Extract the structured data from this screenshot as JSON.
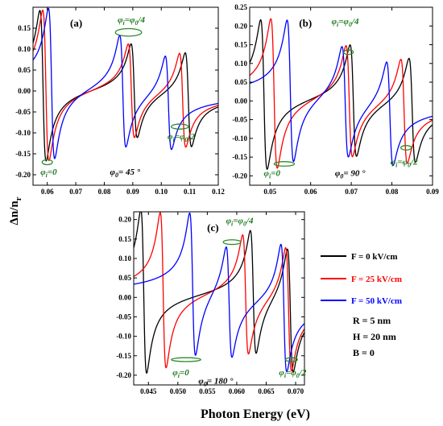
{
  "figure": {
    "ylabel": "Δn/n",
    "ylabel_sub": "r",
    "xlabel": "Photon Energy (eV)",
    "params": [
      "R = 5 nm",
      "H = 20 nm",
      "B = 0"
    ]
  },
  "legend": [
    {
      "label": "F = 0 kV/cm",
      "color": "#000000"
    },
    {
      "label": "F = 25 kV/cm",
      "color": "#ff0000"
    },
    {
      "label": "F = 50 kV/cm",
      "color": "#0000ff"
    }
  ],
  "chart_data": [
    {
      "type": "line",
      "panel": "(a)",
      "phi0_label": "= 45 °",
      "xlim": [
        0.055,
        0.12
      ],
      "ylim": [
        -0.225,
        0.2
      ],
      "xticks": [
        0.06,
        0.07,
        0.08,
        0.09,
        0.1,
        0.11,
        0.12
      ],
      "xtick_labels": [
        "0.06",
        "0.07",
        "0.08",
        "0.09",
        "0.10",
        "0.11",
        "0.12"
      ],
      "yticks": [
        -0.2,
        -0.15,
        -0.1,
        -0.05,
        0.0,
        0.05,
        0.1,
        0.15
      ],
      "ytick_labels": [
        "-0.20",
        "-0.15",
        "-0.10",
        "-0.05",
        "0.00",
        "0.05",
        "0.10",
        "0.15"
      ],
      "annotations": [
        {
          "text": "=0",
          "x": 0.0605,
          "y": -0.2
        },
        {
          "text": "= /4",
          "x": 0.0895,
          "y": 0.163
        },
        {
          "text": "= /2",
          "x": 0.107,
          "y": -0.115
        }
      ],
      "series": [
        {
          "name": "F = 0 kV/cm",
          "color": "#000000",
          "resonances": [
            {
              "e0": 0.0585,
              "amp": 0.18,
              "g": 0.0011
            },
            {
              "e0": 0.0905,
              "amp": 0.113,
              "g": 0.0011
            },
            {
              "e0": 0.1095,
              "amp": 0.113,
              "g": 0.0011
            }
          ]
        },
        {
          "name": "F = 25 kV/cm",
          "color": "#ff0000",
          "resonances": [
            {
              "e0": 0.0595,
              "amp": 0.18,
              "g": 0.0011
            },
            {
              "e0": 0.0895,
              "amp": 0.113,
              "g": 0.0011
            },
            {
              "e0": 0.1075,
              "amp": 0.113,
              "g": 0.0011
            }
          ]
        },
        {
          "name": "F = 50 kV/cm",
          "color": "#0000ff",
          "resonances": [
            {
              "e0": 0.0615,
              "amp": 0.18,
              "g": 0.0011
            },
            {
              "e0": 0.0865,
              "amp": 0.135,
              "g": 0.0011
            },
            {
              "e0": 0.1025,
              "amp": 0.113,
              "g": 0.0011
            }
          ]
        }
      ]
    },
    {
      "type": "line",
      "panel": "(b)",
      "phi0_label": "= 90 °",
      "xlim": [
        0.045,
        0.09
      ],
      "ylim": [
        -0.225,
        0.25
      ],
      "xticks": [
        0.05,
        0.06,
        0.07,
        0.08,
        0.09
      ],
      "xtick_labels": [
        "0.05",
        "0.06",
        "0.07",
        "0.08",
        "0.09"
      ],
      "yticks": [
        -0.2,
        -0.15,
        -0.1,
        -0.05,
        0.0,
        0.05,
        0.1,
        0.15,
        0.2,
        0.25
      ],
      "ytick_labels": [
        "-0.20",
        "-0.15",
        "-0.10",
        "-0.05",
        "0.00",
        "0.05",
        "0.10",
        "0.15",
        "0.20",
        "0.25"
      ],
      "annotations": [
        {
          "text": "=0",
          "x": 0.0505,
          "y": -0.2
        },
        {
          "text": "= /4",
          "x": 0.0685,
          "y": 0.205
        },
        {
          "text": "= /2",
          "x": 0.083,
          "y": -0.17
        }
      ],
      "series": [
        {
          "name": "F = 0 kV/cm",
          "color": "#000000",
          "resonances": [
            {
              "e0": 0.0485,
              "amp": 0.2,
              "g": 0.0008
            },
            {
              "e0": 0.0705,
              "amp": 0.15,
              "g": 0.0008
            },
            {
              "e0": 0.085,
              "amp": 0.14,
              "g": 0.0008
            }
          ]
        },
        {
          "name": "F = 25 kV/cm",
          "color": "#ff0000",
          "resonances": [
            {
              "e0": 0.051,
              "amp": 0.2,
              "g": 0.0008
            },
            {
              "e0": 0.0695,
              "amp": 0.15,
              "g": 0.0008
            },
            {
              "e0": 0.083,
              "amp": 0.14,
              "g": 0.0008
            }
          ]
        },
        {
          "name": "F = 50 kV/cm",
          "color": "#0000ff",
          "resonances": [
            {
              "e0": 0.055,
              "amp": 0.19,
              "g": 0.0008
            },
            {
              "e0": 0.0685,
              "amp": 0.15,
              "g": 0.0008
            },
            {
              "e0": 0.0795,
              "amp": 0.14,
              "g": 0.0008
            }
          ]
        }
      ]
    },
    {
      "type": "line",
      "panel": "(c)",
      "phi0_label": "= 180 °",
      "xlim": [
        0.0425,
        0.0715
      ],
      "ylim": [
        -0.225,
        0.22
      ],
      "xticks": [
        0.045,
        0.05,
        0.055,
        0.06,
        0.065,
        0.07
      ],
      "xtick_labels": [
        "0.045",
        "0.050",
        "0.055",
        "0.060",
        "0.065",
        "0.070"
      ],
      "yticks": [
        -0.2,
        -0.15,
        -0.1,
        -0.05,
        0.0,
        0.05,
        0.1,
        0.15,
        0.2
      ],
      "ytick_labels": [
        "-0.20",
        "-0.15",
        "-0.10",
        "-0.05",
        "0.00",
        "0.05",
        "0.10",
        "0.15",
        "0.20"
      ],
      "annotations": [
        {
          "text": "=0",
          "x": 0.0505,
          "y": -0.2
        },
        {
          "text": "= /4",
          "x": 0.0605,
          "y": 0.19
        },
        {
          "text": "= /2",
          "x": 0.0695,
          "y": -0.2
        }
      ],
      "series": [
        {
          "name": "F = 0 kV/cm",
          "color": "#000000",
          "resonances": [
            {
              "e0": 0.0442,
              "amp": 0.21,
              "g": 0.0005
            },
            {
              "e0": 0.0628,
              "amp": 0.16,
              "g": 0.0005
            },
            {
              "e0": 0.0691,
              "amp": 0.16,
              "g": 0.0005
            }
          ]
        },
        {
          "name": "F = 25 kV/cm",
          "color": "#ff0000",
          "resonances": [
            {
              "e0": 0.0475,
              "amp": 0.2,
              "g": 0.0005
            },
            {
              "e0": 0.0615,
              "amp": 0.155,
              "g": 0.0005
            },
            {
              "e0": 0.0688,
              "amp": 0.16,
              "g": 0.0005
            }
          ]
        },
        {
          "name": "F = 50 kV/cm",
          "color": "#0000ff",
          "resonances": [
            {
              "e0": 0.0525,
              "amp": 0.185,
              "g": 0.0005
            },
            {
              "e0": 0.0587,
              "amp": 0.145,
              "g": 0.0005
            },
            {
              "e0": 0.068,
              "amp": 0.165,
              "g": 0.0005
            }
          ]
        }
      ]
    }
  ]
}
